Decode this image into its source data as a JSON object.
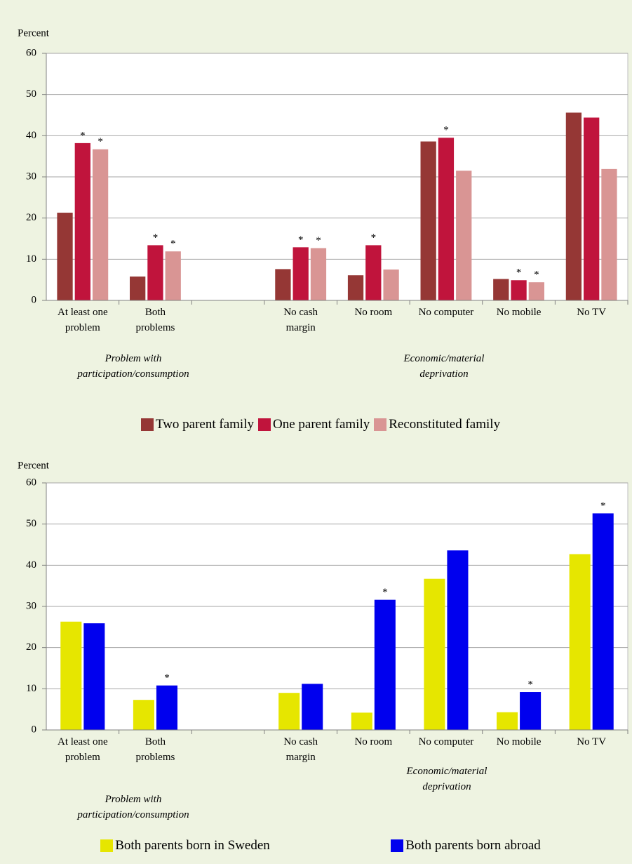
{
  "chart_data": [
    {
      "type": "bar",
      "y_label": "Percent",
      "categories": [
        "At least one problem",
        "Both problems",
        null,
        "No cash margin",
        "No room",
        "No computer",
        "No mobile",
        "No TV"
      ],
      "group_labels": [
        "Problem with participation/consumption",
        "Economic/material deprivation"
      ],
      "series": [
        {
          "name": "Two parent family",
          "color": "#953735",
          "values": [
            21.3,
            5.8,
            null,
            7.6,
            6.1,
            38.6,
            5.2,
            45.6
          ]
        },
        {
          "name": "One parent family",
          "color": "#c0143c",
          "values": [
            38.2,
            13.4,
            null,
            12.9,
            13.4,
            39.5,
            4.9,
            44.4
          ],
          "annotations": [
            "*",
            "*",
            null,
            "*",
            "*",
            "*",
            "*",
            null
          ]
        },
        {
          "name": "Reconstituted family",
          "color": "#d99594",
          "values": [
            36.7,
            11.9,
            null,
            12.7,
            7.5,
            31.5,
            4.4,
            31.9
          ],
          "annotations": [
            "*",
            "*",
            null,
            "*",
            null,
            null,
            "*",
            null
          ]
        }
      ],
      "ylim": [
        0,
        60
      ],
      "yticks": [
        0,
        10,
        20,
        30,
        40,
        50,
        60
      ],
      "grid": true,
      "legend": "bottom"
    },
    {
      "type": "bar",
      "y_label": "Percent",
      "categories": [
        "At least one problem",
        "Both problems",
        null,
        "No cash margin",
        "No room",
        "No computer",
        "No mobile",
        "No TV"
      ],
      "group_labels": [
        "Problem with participation/consumption",
        "Economic/material deprivation"
      ],
      "series": [
        {
          "name": "Both parents born in Sweden",
          "color": "#e6e600",
          "values": [
            26.3,
            7.3,
            null,
            9.0,
            4.2,
            36.7,
            4.3,
            42.7
          ]
        },
        {
          "name": "Both parents born abroad",
          "color": "#0000ee",
          "values": [
            25.9,
            10.8,
            null,
            11.2,
            31.6,
            43.6,
            9.2,
            52.6
          ],
          "annotations": [
            null,
            "*",
            null,
            null,
            "*",
            null,
            "*",
            "*"
          ]
        }
      ],
      "ylim": [
        0,
        60
      ],
      "yticks": [
        0,
        10,
        20,
        30,
        40,
        50,
        60
      ],
      "grid": true,
      "legend": "bottom"
    }
  ]
}
